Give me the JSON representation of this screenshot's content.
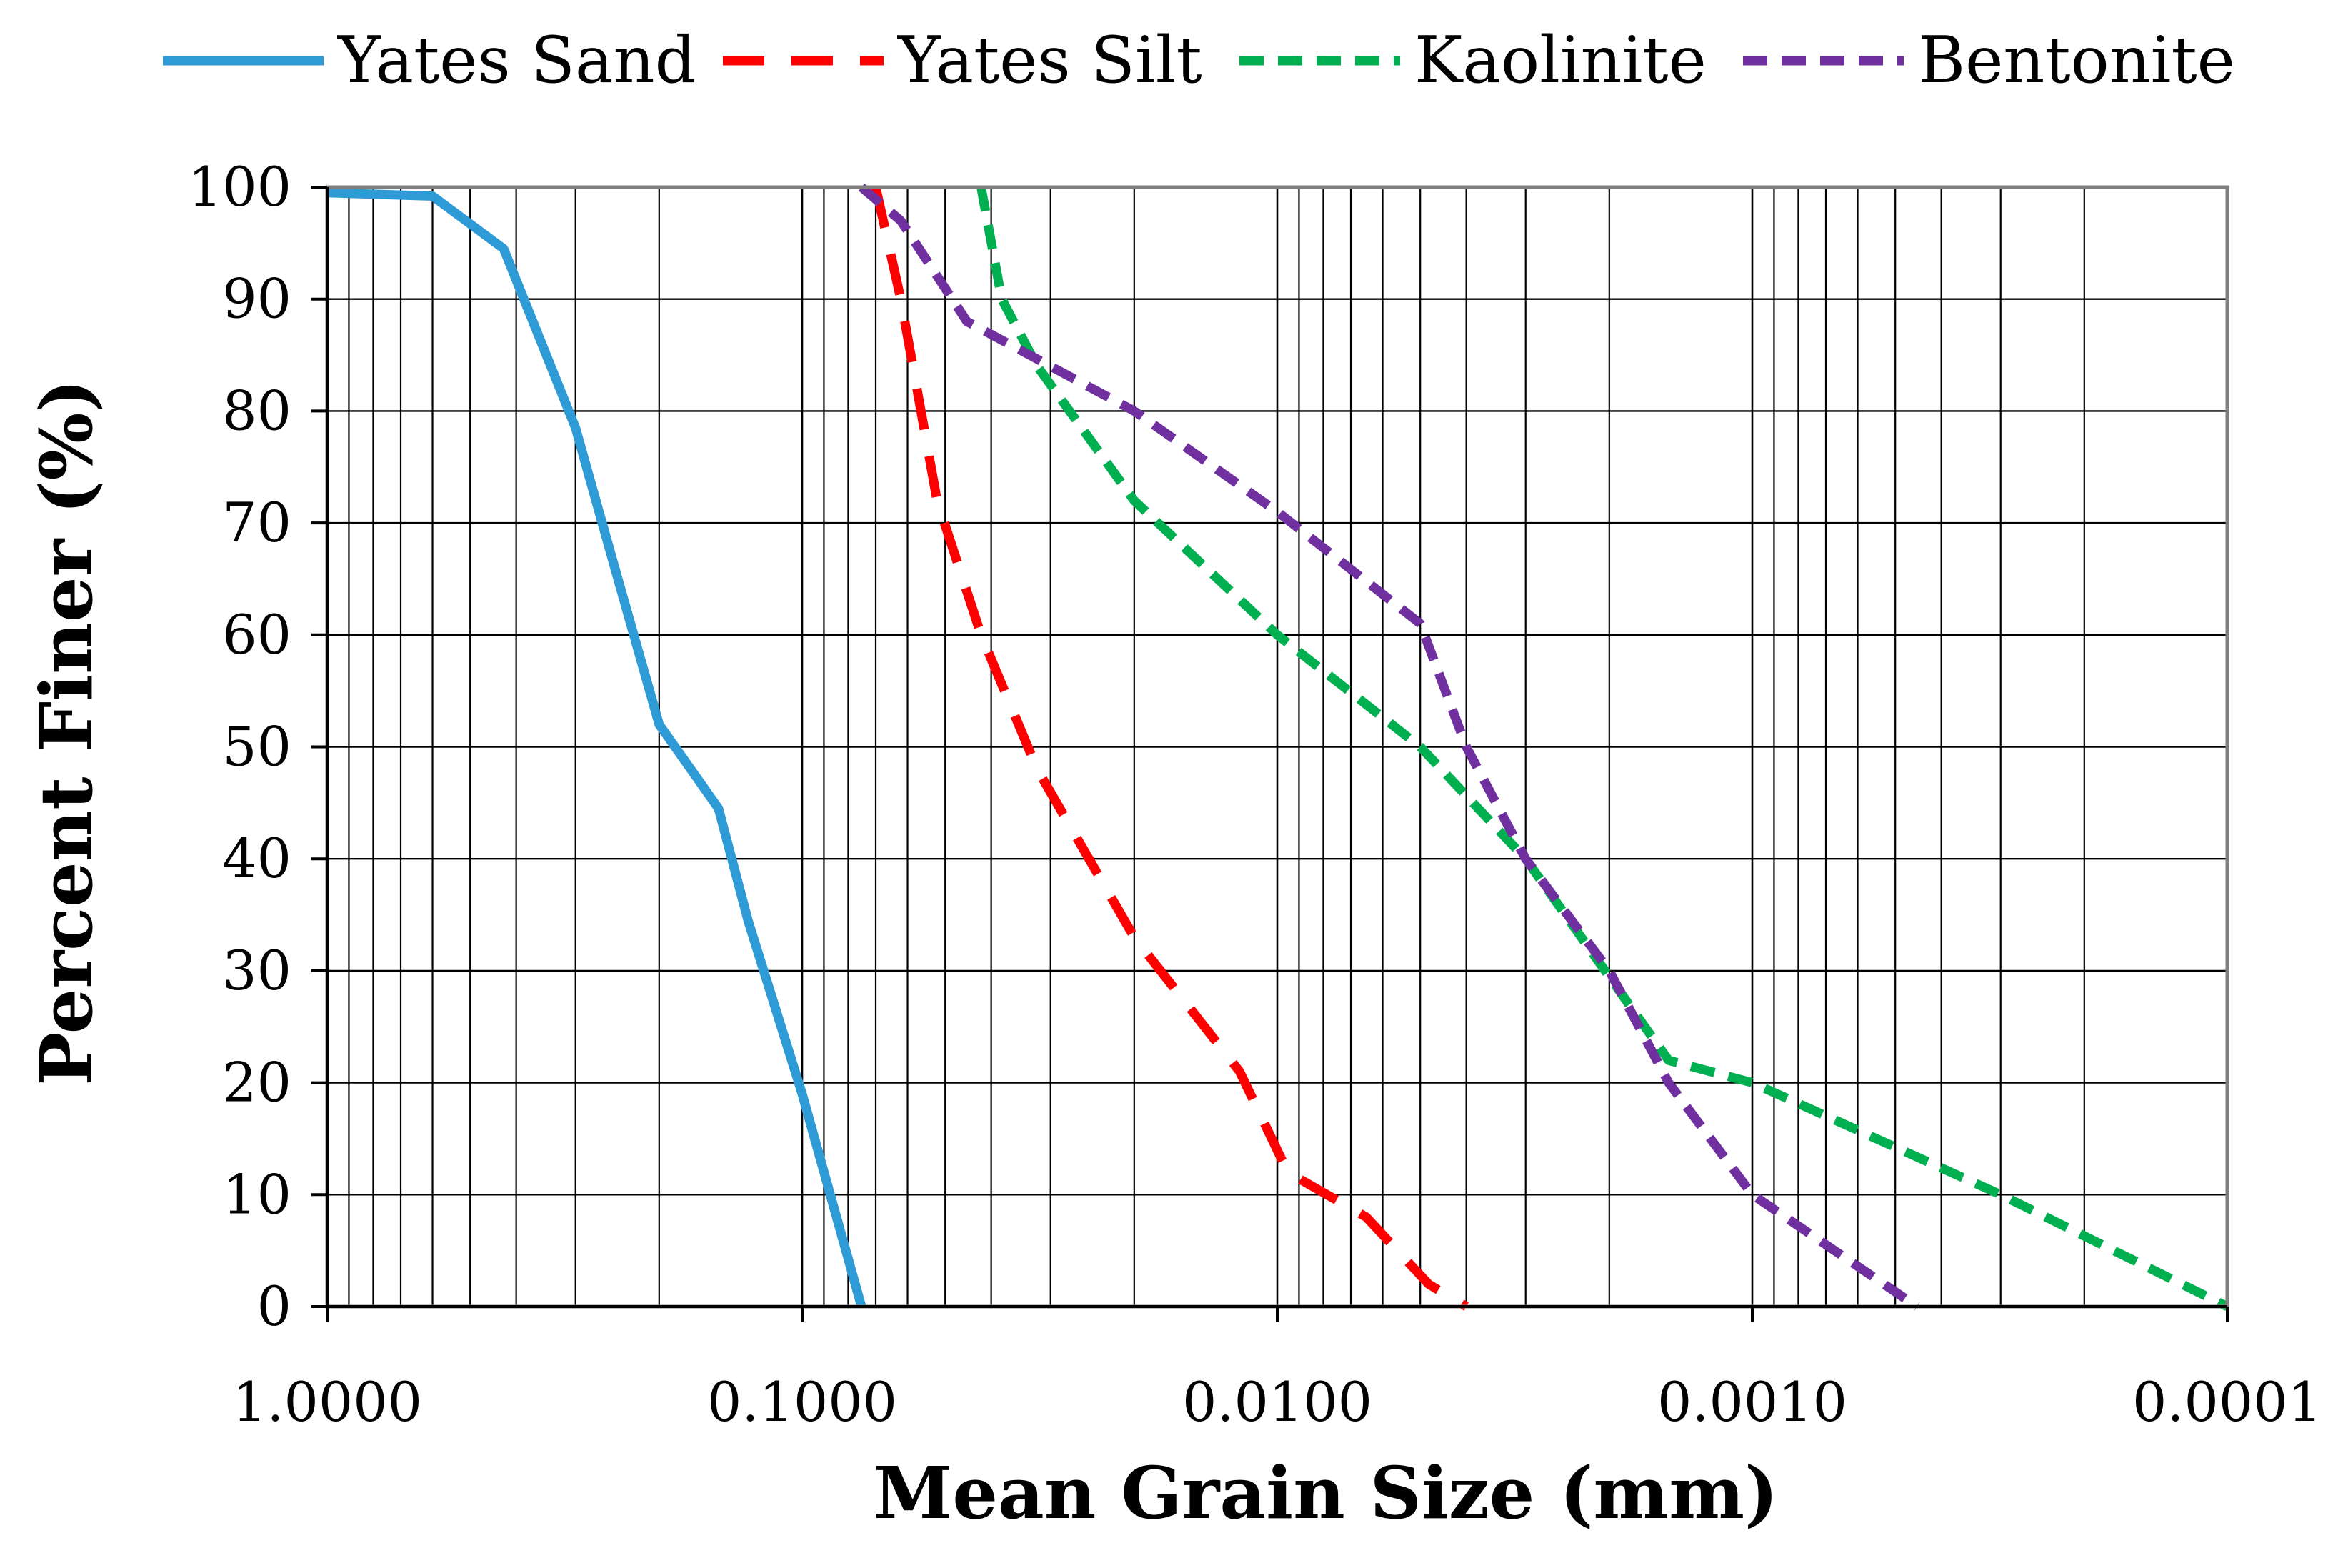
{
  "chart_data": {
    "type": "line",
    "title": "",
    "xlabel": "Mean Grain Size (mm)",
    "ylabel": "Percent Finer (%)",
    "xscale": "log-reversed",
    "xlim": [
      1.0,
      0.0001
    ],
    "ylim": [
      0,
      100
    ],
    "grid": true,
    "legend_position": "top",
    "x_ticks": [
      {
        "value": 1.0,
        "label": "1.0000"
      },
      {
        "value": 0.1,
        "label": "0.1000"
      },
      {
        "value": 0.01,
        "label": "0.0100"
      },
      {
        "value": 0.001,
        "label": "0.0010"
      },
      {
        "value": 0.0001,
        "label": "0.0001"
      }
    ],
    "y_ticks": [
      0,
      10,
      20,
      30,
      40,
      50,
      60,
      70,
      80,
      90,
      100
    ],
    "series": [
      {
        "name": "Yates Sand",
        "color": "#2e9bd6",
        "dash": "solid",
        "x": [
          1.0,
          0.6,
          0.425,
          0.3,
          0.25,
          0.2,
          0.15,
          0.13,
          0.1,
          0.075
        ],
        "y": [
          99.5,
          99.2,
          94.5,
          78.5,
          66.5,
          52,
          44.5,
          34.5,
          19,
          0
        ]
      },
      {
        "name": "Yates Silt",
        "color": "#ff0000",
        "dash": "dash",
        "x": [
          0.07,
          0.062,
          0.052,
          0.042,
          0.032,
          0.02,
          0.012,
          0.0095,
          0.0065,
          0.0048,
          0.004
        ],
        "y": [
          100,
          90,
          72,
          60,
          48,
          33,
          21,
          12,
          8,
          2,
          0
        ]
      },
      {
        "name": "Kaolinite",
        "color": "#00b050",
        "dash": "short-dash",
        "x": [
          0.042,
          0.038,
          0.032,
          0.02,
          0.01,
          0.005,
          0.003,
          0.0015,
          0.001,
          0.0003,
          0.0001
        ],
        "y": [
          100,
          90,
          84,
          72,
          60,
          50,
          40,
          22,
          20,
          10,
          0
        ]
      },
      {
        "name": "Bentonite",
        "color": "#7030a0",
        "dash": "short-dash",
        "x": [
          0.075,
          0.062,
          0.045,
          0.02,
          0.01,
          0.005,
          0.004,
          0.003,
          0.002,
          0.0015,
          0.001,
          0.00045
        ],
        "y": [
          100,
          97,
          88,
          80,
          71,
          61,
          50,
          40,
          30,
          20,
          10,
          0
        ]
      }
    ]
  }
}
